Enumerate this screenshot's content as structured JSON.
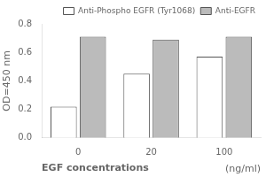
{
  "chart_data": {
    "type": "bar",
    "categories": [
      "0",
      "20",
      "100"
    ],
    "xlabel": "EGF concentrations",
    "ylabel": "OD=450 nm",
    "annotations": [
      "(ng/ml)"
    ],
    "series": [
      {
        "name": "Anti-Phospho EGFR (Tyr1068)",
        "color": "white",
        "values": [
          0.22,
          0.45,
          0.57
        ]
      },
      {
        "name": "Anti-EGFR",
        "color": "#bbbbbb",
        "values": [
          0.71,
          0.69,
          0.71
        ]
      }
    ],
    "ylim": [
      0.0,
      0.8
    ],
    "yticks": [
      {
        "value": 0.0,
        "label": "0.0"
      },
      0.2,
      0.4,
      0.6,
      0.8
    ],
    "grid": false,
    "legend": "upper right"
  }
}
